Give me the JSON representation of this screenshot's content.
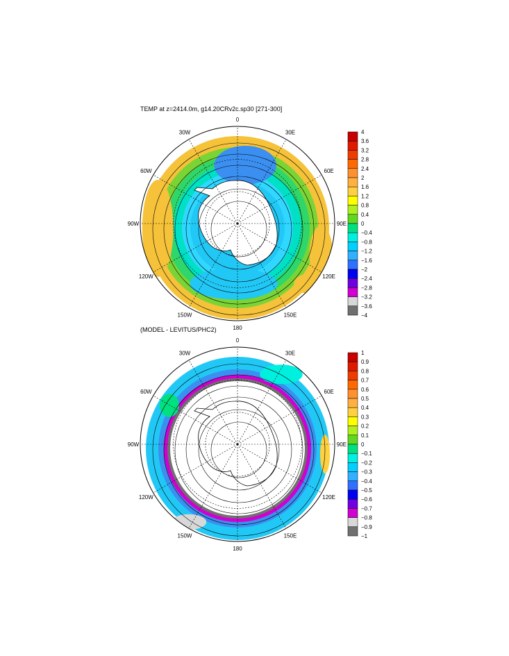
{
  "chart_data": [
    {
      "type": "heatmap",
      "title": "TEMP at z=2414.0m, g14.20CRv2c.sp30 [271-300]",
      "projection": "south polar stereographic",
      "lon_labels": [
        "0",
        "30E",
        "60E",
        "90E",
        "120E",
        "150E",
        "180",
        "150W",
        "120W",
        "90W",
        "60W",
        "30W"
      ],
      "colorbar_labels": [
        "4",
        "3.6",
        "3.2",
        "2.8",
        "2.4",
        "2",
        "1.6",
        "1.2",
        "0.8",
        "0.4",
        "0",
        "−0.4",
        "−0.8",
        "−1.2",
        "−1.6",
        "−2",
        "−2.4",
        "−2.8",
        "−3.2",
        "−3.6",
        "−4"
      ],
      "colorbar_colors": [
        "#c80000",
        "#e01a00",
        "#f03c00",
        "#ff6a00",
        "#ff9030",
        "#ffb040",
        "#ffd040",
        "#ffff00",
        "#b0f020",
        "#60d820",
        "#00e080",
        "#00f0e0",
        "#00d0ff",
        "#30b0ff",
        "#3070ff",
        "#0000f0",
        "#7000e0",
        "#d000d0",
        "#d8d8d8",
        "#707070"
      ],
      "rings": [
        {
          "r": 132,
          "c": "#f5c23a"
        },
        {
          "r": 116,
          "c": "#7bd435"
        },
        {
          "r": 104,
          "c": "#2fd66a"
        },
        {
          "r": 92,
          "c": "#00e0c4"
        },
        {
          "r": 80,
          "c": "#30d8ff"
        },
        {
          "r": 68,
          "c": "#22c8f5"
        }
      ],
      "patches": [
        {
          "cx": 0.08,
          "cy": -0.6,
          "rx": 0.32,
          "ry": 0.2,
          "c": "#3b8ff0"
        },
        {
          "cx": -0.04,
          "cy": 0.62,
          "rx": 0.45,
          "ry": 0.16,
          "c": "#22c8f5"
        },
        {
          "cx": -0.82,
          "cy": 0.05,
          "rx": 0.16,
          "ry": 0.5,
          "c": "#f5c23a"
        },
        {
          "cx": 0.86,
          "cy": 0.32,
          "rx": 0.12,
          "ry": 0.3,
          "c": "#f5c23a"
        },
        {
          "cx": 0.72,
          "cy": 0.62,
          "rx": 0.14,
          "ry": 0.1,
          "c": "#f5c23a"
        }
      ]
    },
    {
      "type": "heatmap",
      "title": "(MODEL - LEVITUS/PHC2)",
      "projection": "south polar stereographic",
      "lon_labels": [
        "0",
        "30E",
        "60E",
        "90E",
        "120E",
        "150E",
        "180",
        "150W",
        "120W",
        "90W",
        "60W",
        "30W"
      ],
      "colorbar_labels": [
        "1",
        "0.9",
        "0.8",
        "0.7",
        "0.6",
        "0.5",
        "0.4",
        "0.3",
        "0.2",
        "0.1",
        "0",
        "−0.1",
        "−0.2",
        "−0.3",
        "−0.4",
        "−0.5",
        "−0.6",
        "−0.7",
        "−0.8",
        "−0.9",
        "−1"
      ],
      "colorbar_colors": [
        "#c80000",
        "#e01a00",
        "#f03c00",
        "#ff6a00",
        "#ff9030",
        "#ffb040",
        "#ffd040",
        "#ffff00",
        "#b0f020",
        "#60d820",
        "#00e080",
        "#00f0e0",
        "#00d0ff",
        "#30b0ff",
        "#3070ff",
        "#0000f0",
        "#7000e0",
        "#d000d0",
        "#d8d8d8",
        "#707070"
      ],
      "rings": [
        {
          "r": 132,
          "c": "#22c8f5"
        },
        {
          "r": 114,
          "c": "#3b8ff0"
        },
        {
          "r": 106,
          "c": "#d000d0"
        },
        {
          "r": 101,
          "c": "#707070"
        },
        {
          "r": 97,
          "c": "#ffffff"
        }
      ],
      "patches": [
        {
          "cx": 0.45,
          "cy": -0.72,
          "rx": 0.22,
          "ry": 0.1,
          "c": "#00f0e0"
        },
        {
          "cx": -0.7,
          "cy": -0.4,
          "rx": 0.1,
          "ry": 0.12,
          "c": "#00e080"
        },
        {
          "cx": 0.9,
          "cy": 0.1,
          "rx": 0.05,
          "ry": 0.2,
          "c": "#ffd040"
        },
        {
          "cx": -0.5,
          "cy": 0.8,
          "rx": 0.18,
          "ry": 0.08,
          "c": "#d8d8d8"
        }
      ]
    }
  ]
}
